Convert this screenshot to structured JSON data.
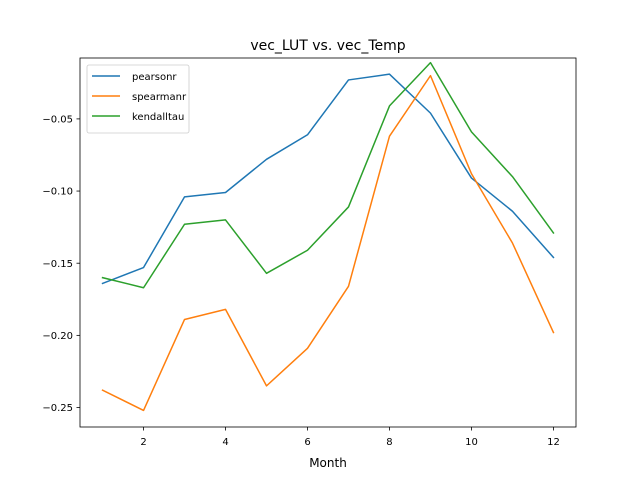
{
  "chart_data": {
    "type": "line",
    "title": "vec_LUT vs. vec_Temp",
    "xlabel": "Month",
    "ylabel": "",
    "x": [
      1,
      2,
      3,
      4,
      5,
      6,
      7,
      8,
      9,
      10,
      11,
      12
    ],
    "xlim": [
      0.45,
      12.55
    ],
    "ylim": [
      -0.2635,
      -0.0078
    ],
    "xticks": [
      2,
      4,
      6,
      8,
      10,
      12
    ],
    "xtick_labels": [
      "2",
      "4",
      "6",
      "8",
      "10",
      "12"
    ],
    "yticks": [
      -0.25,
      -0.2,
      -0.15,
      -0.1,
      -0.05
    ],
    "ytick_labels": [
      "−0.25",
      "−0.20",
      "−0.15",
      "−0.10",
      "−0.05"
    ],
    "grid": false,
    "legend_position": "upper-left",
    "series": [
      {
        "name": "pearsonr",
        "color": "#1f77b4",
        "values": [
          -0.164,
          -0.153,
          -0.104,
          -0.101,
          -0.078,
          -0.061,
          -0.023,
          -0.019,
          -0.046,
          -0.091,
          -0.114,
          -0.146
        ]
      },
      {
        "name": "spearmanr",
        "color": "#ff7f0e",
        "values": [
          -0.238,
          -0.252,
          -0.189,
          -0.182,
          -0.235,
          -0.209,
          -0.166,
          -0.062,
          -0.02,
          -0.088,
          -0.136,
          -0.198
        ]
      },
      {
        "name": "kendalltau",
        "color": "#2ca02c",
        "values": [
          -0.16,
          -0.167,
          -0.123,
          -0.12,
          -0.157,
          -0.141,
          -0.111,
          -0.041,
          -0.011,
          -0.059,
          -0.09,
          -0.129
        ]
      }
    ]
  }
}
